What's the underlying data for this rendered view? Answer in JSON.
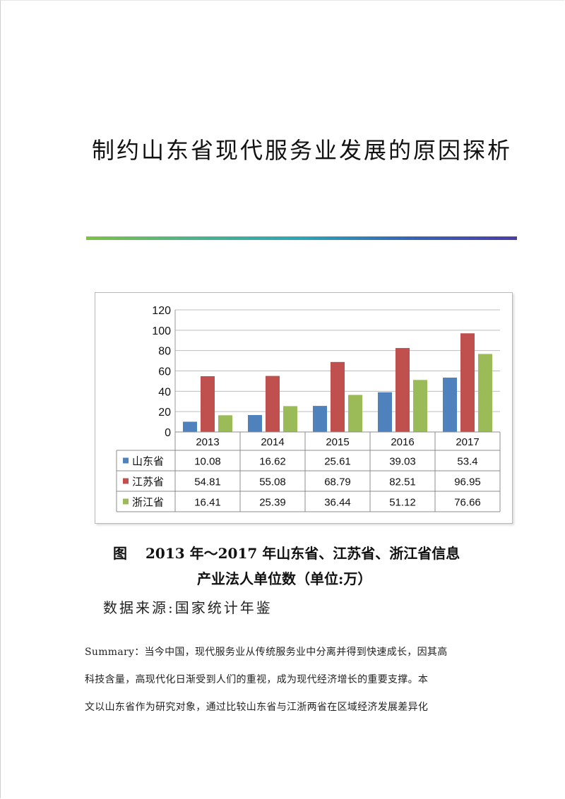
{
  "document": {
    "title": "制约山东省现代服务业发展的原因探析",
    "caption": {
      "figure_label": "图",
      "line1": "2013 年～2017 年山东省、江苏省、浙江省信息",
      "line2": "产业法人单位数（单位:万）"
    },
    "source": "数据来源:国家统计年鉴",
    "summary_lines": [
      "Summary：当今中国，现代服务业从传统服务业中分离并得到快速成长，因其高",
      "科技含量，高现代化日渐受到人们的重视，成为现代经济增长的重要支撑。本",
      "文以山东省作为研究对象，通过比较山东省与江浙两省在区域经济发展差异化"
    ]
  },
  "chart_data": {
    "type": "bar",
    "categories": [
      "2013",
      "2014",
      "2015",
      "2016",
      "2017"
    ],
    "series": [
      {
        "name": "山东省",
        "values": [
          10.08,
          16.62,
          25.61,
          39.03,
          53.4
        ],
        "display": [
          "10.08",
          "16.62",
          "25.61",
          "39.03",
          "53.4"
        ],
        "color": "#4f81bd"
      },
      {
        "name": "江苏省",
        "values": [
          54.81,
          55.08,
          68.79,
          82.51,
          96.95
        ],
        "display": [
          "54.81",
          "55.08",
          "68.79",
          "82.51",
          "96.95"
        ],
        "color": "#c0504d"
      },
      {
        "name": "浙江省",
        "values": [
          16.41,
          25.39,
          36.44,
          51.12,
          76.66
        ],
        "display": [
          "16.41",
          "25.39",
          "36.44",
          "51.12",
          "76.66"
        ],
        "color": "#9bbb59"
      }
    ],
    "yticks": [
      "0",
      "20",
      "40",
      "60",
      "80",
      "100",
      "120"
    ],
    "ylim": [
      0,
      120
    ],
    "grid": true,
    "legend": "data-table"
  }
}
